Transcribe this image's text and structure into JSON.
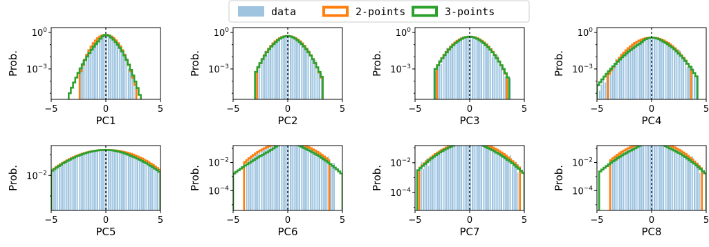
{
  "colors": {
    "data": "#9fc4e0",
    "two_points": "#ff7f0e",
    "three_points": "#2ca02c"
  },
  "legend": {
    "placement": "top-center",
    "entries": [
      {
        "label": "data",
        "color": "#9fc4e0",
        "style": "patch"
      },
      {
        "label": "2-points",
        "color": "#ff7f0e",
        "style": "outline"
      },
      {
        "label": "3-points",
        "color": "#2ca02c",
        "style": "outline"
      }
    ]
  },
  "chart_data": [
    {
      "type": "histogram",
      "xlabel": "PC1",
      "ylabel": "Prob.",
      "xlim": [
        -5,
        5
      ],
      "xticks": [
        -5,
        0,
        5
      ],
      "yscale": "log",
      "ylim_log10": [
        -5.5,
        0.4
      ],
      "yticks": [
        {
          "label": "10",
          "exp": "0",
          "log10": 0
        },
        {
          "label": "10",
          "exp": "−3",
          "log10": -3
        }
      ],
      "sigma": 0.62,
      "data_range": [
        -2.3,
        2.9
      ],
      "two_points_params": {
        "sigma": 0.62,
        "tail_left": 0.0,
        "tail_right": 0.0,
        "range": [
          -2.4,
          2.9
        ]
      },
      "three_points_params": {
        "sigma": 0.62,
        "tail_left": 0.55,
        "tail_right": 0.25,
        "range": [
          -3.3,
          3.2
        ]
      }
    },
    {
      "type": "histogram",
      "xlabel": "PC2",
      "ylabel": "Prob.",
      "xlim": [
        -5,
        5
      ],
      "xticks": [
        -5,
        0,
        5
      ],
      "yscale": "log",
      "ylim_log10": [
        -5.5,
        0.4
      ],
      "yticks": [
        {
          "label": "10",
          "exp": "0",
          "log10": 0
        },
        {
          "label": "10",
          "exp": "−3",
          "log10": -3
        }
      ],
      "sigma": 0.78,
      "data_range": [
        -3.0,
        3.2
      ],
      "two_points_params": {
        "sigma": 0.78,
        "tail_left": 0.0,
        "tail_right": 0.0,
        "range": [
          -2.8,
          3.1
        ]
      },
      "three_points_params": {
        "sigma": 0.78,
        "tail_left": 0.12,
        "tail_right": 0.12,
        "range": [
          -3.0,
          3.1
        ]
      }
    },
    {
      "type": "histogram",
      "xlabel": "PC3",
      "ylabel": "Prob.",
      "xlim": [
        -5,
        5
      ],
      "xticks": [
        -5,
        0,
        5
      ],
      "yscale": "log",
      "ylim_log10": [
        -5.5,
        0.4
      ],
      "yticks": [
        {
          "label": "10",
          "exp": "0",
          "log10": 0
        },
        {
          "label": "10",
          "exp": "−3",
          "log10": -3
        }
      ],
      "sigma": 0.88,
      "data_range": [
        -3.4,
        3.8
      ],
      "two_points_params": {
        "sigma": 0.88,
        "tail_left": 0.0,
        "tail_right": 0.0,
        "range": [
          -3.0,
          3.5
        ]
      },
      "three_points_params": {
        "sigma": 0.88,
        "tail_left": 0.12,
        "tail_right": 0.12,
        "range": [
          -3.1,
          3.6
        ]
      }
    },
    {
      "type": "histogram",
      "xlabel": "PC4",
      "ylabel": "Prob.",
      "xlim": [
        -5,
        5
      ],
      "xticks": [
        -5,
        0,
        5
      ],
      "yscale": "log",
      "ylim_log10": [
        -5.5,
        0.4
      ],
      "yticks": [
        {
          "label": "10",
          "exp": "0",
          "log10": 0
        },
        {
          "label": "10",
          "exp": "−3",
          "log10": -3
        }
      ],
      "sigma": 1.05,
      "data_range": [
        -4.9,
        4.2
      ],
      "two_points_params": {
        "sigma": 1.05,
        "tail_left": 0.0,
        "tail_right": 0.0,
        "range": [
          -3.9,
          3.6
        ]
      },
      "three_points_params": {
        "sigma": 1.05,
        "tail_left": 0.55,
        "tail_right": 0.2,
        "range": [
          -5.0,
          4.3
        ]
      }
    },
    {
      "type": "histogram",
      "xlabel": "PC5",
      "ylabel": "Prob.",
      "xlim": [
        -5,
        5
      ],
      "xticks": [
        -5,
        0,
        5
      ],
      "yscale": "log",
      "ylim_log10": [
        -3.7,
        -0.55
      ],
      "yticks": [
        {
          "label": "10",
          "exp": "−2",
          "log10": -2
        }
      ],
      "sigma": 2.3,
      "data_range": [
        -5.0,
        5.0
      ],
      "two_points_params": {
        "sigma": 2.3,
        "tail_left": 0.0,
        "tail_right": -0.05,
        "range": [
          -5.0,
          5.0
        ]
      },
      "three_points_params": {
        "sigma": 2.3,
        "tail_left": 0.05,
        "tail_right": 0.15,
        "range": [
          -5.0,
          5.0
        ]
      }
    },
    {
      "type": "histogram",
      "xlabel": "PC6",
      "ylabel": "Prob.",
      "xlim": [
        -5,
        5
      ],
      "xticks": [
        -5,
        0,
        5
      ],
      "yscale": "log",
      "ylim_log10": [
        -5.4,
        -0.8
      ],
      "yticks": [
        {
          "label": "10",
          "exp": "−2",
          "log10": -2
        },
        {
          "label": "10",
          "exp": "−4",
          "log10": -4
        }
      ],
      "sigma": 1.55,
      "data_range": [
        -3.9,
        4.4
      ],
      "two_points_params": {
        "sigma": 1.55,
        "tail_left": 0.0,
        "tail_right": 0.0,
        "range": [
          -3.9,
          3.9
        ]
      },
      "three_points_params": {
        "sigma": 1.55,
        "tail_left": 0.7,
        "tail_right": 0.4,
        "range": [
          -5.0,
          5.0
        ]
      }
    },
    {
      "type": "histogram",
      "xlabel": "PC7",
      "ylabel": "Prob.",
      "xlim": [
        -5,
        5
      ],
      "xticks": [
        -5,
        0,
        5
      ],
      "yscale": "log",
      "ylim_log10": [
        -5.2,
        -0.85
      ],
      "yticks": [
        {
          "label": "10",
          "exp": "−2",
          "log10": -2
        },
        {
          "label": "10",
          "exp": "−4",
          "log10": -4
        }
      ],
      "sigma": 1.6,
      "data_range": [
        -4.7,
        4.5
      ],
      "two_points_params": {
        "sigma": 1.6,
        "tail_left": 0.0,
        "tail_right": 0.0,
        "range": [
          -4.5,
          4.6
        ]
      },
      "three_points_params": {
        "sigma": 1.6,
        "tail_left": 0.15,
        "tail_right": 0.35,
        "range": [
          -4.7,
          5.0
        ]
      }
    },
    {
      "type": "histogram",
      "xlabel": "PC8",
      "ylabel": "Prob.",
      "xlim": [
        -5,
        5
      ],
      "xticks": [
        -5,
        0,
        5
      ],
      "yscale": "log",
      "ylim_log10": [
        -5.4,
        -0.8
      ],
      "yticks": [
        {
          "label": "10",
          "exp": "−2",
          "log10": -2
        },
        {
          "label": "10",
          "exp": "−4",
          "log10": -4
        }
      ],
      "sigma": 1.55,
      "data_range": [
        -3.6,
        4.5
      ],
      "two_points_params": {
        "sigma": 1.55,
        "tail_left": 0.0,
        "tail_right": -0.1,
        "range": [
          -3.8,
          4.6
        ]
      },
      "three_points_params": {
        "sigma": 1.55,
        "tail_left": 0.45,
        "tail_right": 0.3,
        "range": [
          -4.8,
          5.0
        ]
      }
    }
  ]
}
